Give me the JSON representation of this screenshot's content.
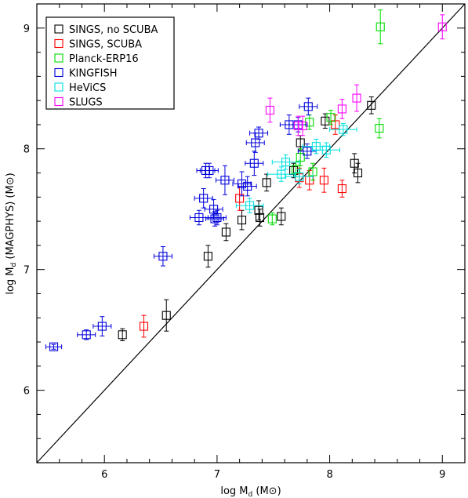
{
  "chart_data": {
    "type": "scatter",
    "xlabel": "log M_d (M⊙)",
    "ylabel": "log M_d (MAGPHYS) (M⊙)",
    "xlabel_parts": {
      "main": "log M",
      "sub": "d",
      "unit": " (M⊙)"
    },
    "ylabel_parts": {
      "main": "log M",
      "sub": "d",
      "unit": " (MAGPHYS) (M⊙)"
    },
    "xlim": [
      5.4,
      9.2
    ],
    "ylim": [
      5.4,
      9.2
    ],
    "x_ticks": [
      6,
      7,
      8,
      9
    ],
    "y_ticks": [
      6,
      7,
      8,
      9
    ],
    "legend_position": "top-left",
    "one_to_one_line": true,
    "series": [
      {
        "name": "SINGS, no SCUBA",
        "color": "#000000",
        "points": [
          {
            "x": 6.16,
            "y": 6.46,
            "yerr": 0.05
          },
          {
            "x": 6.55,
            "y": 6.62,
            "yerr": 0.13
          },
          {
            "x": 6.92,
            "y": 7.11,
            "yerr": 0.09
          },
          {
            "x": 7.08,
            "y": 7.31,
            "yerr": 0.07
          },
          {
            "x": 7.22,
            "y": 7.41,
            "yerr": 0.08
          },
          {
            "x": 7.37,
            "y": 7.49,
            "yerr": 0.08
          },
          {
            "x": 7.38,
            "y": 7.43,
            "yerr": 0.07
          },
          {
            "x": 7.44,
            "y": 7.72,
            "yerr": 0.07
          },
          {
            "x": 7.57,
            "y": 7.44,
            "yerr": 0.07
          },
          {
            "x": 7.68,
            "y": 7.82,
            "yerr": 0.06
          },
          {
            "x": 7.74,
            "y": 8.05,
            "yerr": 0.06
          },
          {
            "x": 7.96,
            "y": 8.23,
            "yerr": 0.06
          },
          {
            "x": 8.22,
            "y": 7.88,
            "yerr": 0.08
          },
          {
            "x": 8.25,
            "y": 7.8,
            "yerr": 0.08
          },
          {
            "x": 8.37,
            "y": 8.36,
            "yerr": 0.07
          }
        ]
      },
      {
        "name": "SINGS, SCUBA",
        "color": "#ff0000",
        "points": [
          {
            "x": 6.35,
            "y": 6.53,
            "yerr": 0.09
          },
          {
            "x": 7.2,
            "y": 7.59,
            "yerr": 0.1
          },
          {
            "x": 7.73,
            "y": 7.76,
            "yerr": 0.08
          },
          {
            "x": 7.82,
            "y": 7.74,
            "yerr": 0.08
          },
          {
            "x": 7.95,
            "y": 7.74,
            "yerr": 0.1
          },
          {
            "x": 8.05,
            "y": 8.2,
            "yerr": 0.08
          },
          {
            "x": 8.11,
            "y": 7.67,
            "yerr": 0.07
          }
        ]
      },
      {
        "name": "Planck-ERP16",
        "color": "#00dd00",
        "points": [
          {
            "x": 7.49,
            "y": 7.42,
            "yerr": 0.05
          },
          {
            "x": 7.7,
            "y": 7.83,
            "yerr": 0.06
          },
          {
            "x": 7.74,
            "y": 7.93,
            "yerr": 0.07
          },
          {
            "x": 7.85,
            "y": 7.81,
            "yerr": 0.07
          },
          {
            "x": 7.82,
            "y": 8.22,
            "yerr": 0.06
          },
          {
            "x": 8.01,
            "y": 8.26,
            "yerr": 0.06
          },
          {
            "x": 8.44,
            "y": 8.17,
            "yerr": 0.08
          },
          {
            "x": 8.45,
            "y": 9.01,
            "yerr": 0.14
          }
        ]
      },
      {
        "name": "KINGFISH",
        "color": "#0000dd",
        "points": [
          {
            "x": 5.55,
            "y": 6.36,
            "yerr": 0.02,
            "xerr": 0.07
          },
          {
            "x": 5.84,
            "y": 6.46,
            "yerr": 0.04,
            "xerr": 0.08
          },
          {
            "x": 5.98,
            "y": 6.53,
            "yerr": 0.08,
            "xerr": 0.08
          },
          {
            "x": 6.52,
            "y": 7.11,
            "yerr": 0.08,
            "xerr": 0.08
          },
          {
            "x": 6.84,
            "y": 7.43,
            "yerr": 0.06,
            "xerr": 0.08
          },
          {
            "x": 6.88,
            "y": 7.59,
            "yerr": 0.08,
            "xerr": 0.08
          },
          {
            "x": 6.9,
            "y": 7.82,
            "yerr": 0.06,
            "xerr": 0.08
          },
          {
            "x": 6.93,
            "y": 7.82,
            "yerr": 0.06,
            "xerr": 0.08
          },
          {
            "x": 6.97,
            "y": 7.5,
            "yerr": 0.08,
            "xerr": 0.08
          },
          {
            "x": 6.98,
            "y": 7.42,
            "yerr": 0.06,
            "xerr": 0.08
          },
          {
            "x": 7.0,
            "y": 7.43,
            "yerr": 0.06,
            "xerr": 0.08
          },
          {
            "x": 7.07,
            "y": 7.74,
            "yerr": 0.12,
            "xerr": 0.08
          },
          {
            "x": 7.22,
            "y": 7.71,
            "yerr": 0.1,
            "xerr": 0.08
          },
          {
            "x": 7.27,
            "y": 7.69,
            "yerr": 0.08,
            "xerr": 0.08
          },
          {
            "x": 7.33,
            "y": 7.88,
            "yerr": 0.1,
            "xerr": 0.08
          },
          {
            "x": 7.34,
            "y": 8.05,
            "yerr": 0.08,
            "xerr": 0.08
          },
          {
            "x": 7.37,
            "y": 8.13,
            "yerr": 0.05,
            "xerr": 0.08
          },
          {
            "x": 7.64,
            "y": 8.2,
            "yerr": 0.08,
            "xerr": 0.08
          },
          {
            "x": 7.72,
            "y": 8.2,
            "yerr": 0.06,
            "xerr": 0.08
          },
          {
            "x": 7.81,
            "y": 8.35,
            "yerr": 0.07,
            "xerr": 0.08
          },
          {
            "x": 7.8,
            "y": 7.98,
            "yerr": 0.06,
            "xerr": 0.08
          }
        ]
      },
      {
        "name": "HeViCS",
        "color": "#00e0e0",
        "points": [
          {
            "x": 7.29,
            "y": 7.53,
            "yerr": 0.06,
            "xerr": 0.12
          },
          {
            "x": 7.57,
            "y": 7.79,
            "yerr": 0.06,
            "xerr": 0.12
          },
          {
            "x": 7.61,
            "y": 7.89,
            "yerr": 0.06,
            "xerr": 0.12
          },
          {
            "x": 7.73,
            "y": 7.77,
            "yerr": 0.06,
            "xerr": 0.12
          },
          {
            "x": 7.88,
            "y": 8.02,
            "yerr": 0.06,
            "xerr": 0.12
          },
          {
            "x": 7.97,
            "y": 7.99,
            "yerr": 0.06,
            "xerr": 0.12
          },
          {
            "x": 8.12,
            "y": 8.16,
            "yerr": 0.05,
            "xerr": 0.12
          }
        ]
      },
      {
        "name": "SLUGS",
        "color": "#ff00ff",
        "points": [
          {
            "x": 7.47,
            "y": 8.32,
            "yerr": 0.1
          },
          {
            "x": 7.72,
            "y": 8.19,
            "yerr": 0.08
          },
          {
            "x": 7.76,
            "y": 8.19,
            "yerr": 0.08
          },
          {
            "x": 8.11,
            "y": 8.33,
            "yerr": 0.08
          },
          {
            "x": 8.24,
            "y": 8.42,
            "yerr": 0.11
          },
          {
            "x": 9.0,
            "y": 9.01,
            "yerr": 0.1
          }
        ]
      }
    ]
  }
}
